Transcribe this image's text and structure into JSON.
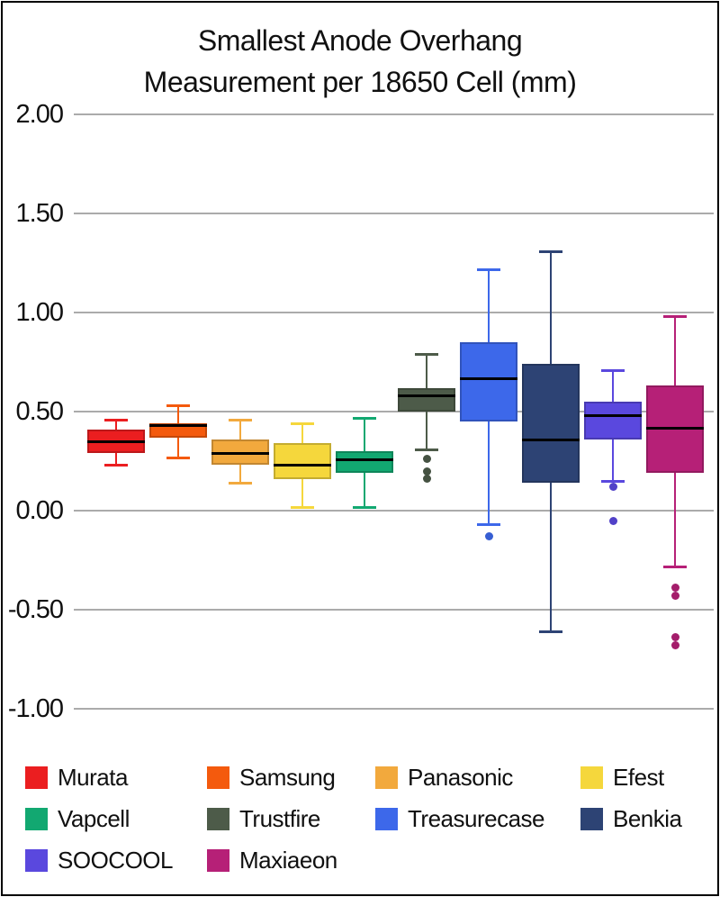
{
  "title": {
    "line1": "Smallest Anode Overhang",
    "line2": "Measurement per 18650 Cell (mm)"
  },
  "y_axis": {
    "tick_labels": [
      "2.00",
      "1.50",
      "1.00",
      "0.50",
      "0.00",
      "-0.50",
      "-1.00"
    ],
    "tick_values": [
      2.0,
      1.5,
      1.0,
      0.5,
      0.0,
      -0.5,
      -1.0
    ]
  },
  "chart_data": {
    "type": "box",
    "title": "Smallest Anode Overhang Measurement per 18650 Cell (mm)",
    "xlabel": "",
    "ylabel": "",
    "ylim": [
      -1.25,
      2.15
    ],
    "grid": true,
    "legend_position": "bottom",
    "median_color": "#000000",
    "series": [
      {
        "name": "Murata",
        "color": "#EB1E20",
        "whisker_low": 0.23,
        "q1": 0.29,
        "median": 0.35,
        "q3": 0.41,
        "whisker_high": 0.46,
        "outliers": []
      },
      {
        "name": "Samsung",
        "color": "#F45A0D",
        "whisker_low": 0.27,
        "q1": 0.37,
        "median": 0.43,
        "q3": 0.44,
        "whisker_high": 0.53,
        "outliers": []
      },
      {
        "name": "Panasonic",
        "color": "#F2A93D",
        "whisker_low": 0.14,
        "q1": 0.23,
        "median": 0.29,
        "q3": 0.36,
        "whisker_high": 0.46,
        "outliers": []
      },
      {
        "name": "Efest",
        "color": "#F5D73C",
        "whisker_low": 0.02,
        "q1": 0.16,
        "median": 0.23,
        "q3": 0.34,
        "whisker_high": 0.44,
        "outliers": []
      },
      {
        "name": "Vapcell",
        "color": "#12A871",
        "whisker_low": 0.02,
        "q1": 0.19,
        "median": 0.26,
        "q3": 0.3,
        "whisker_high": 0.47,
        "outliers": []
      },
      {
        "name": "Trustfire",
        "color": "#4D5B49",
        "whisker_low": 0.31,
        "q1": 0.5,
        "median": 0.58,
        "q3": 0.62,
        "whisker_high": 0.79,
        "outliers": [
          0.26,
          0.2,
          0.16
        ]
      },
      {
        "name": "Treasurecase",
        "color": "#3D68EA",
        "whisker_low": -0.07,
        "q1": 0.45,
        "median": 0.67,
        "q3": 0.85,
        "whisker_high": 1.22,
        "outliers": [
          -0.13
        ]
      },
      {
        "name": "Benkia",
        "color": "#2D4374",
        "whisker_low": -0.61,
        "q1": 0.14,
        "median": 0.36,
        "q3": 0.74,
        "whisker_high": 1.31,
        "outliers": []
      },
      {
        "name": "SOOCOOL",
        "color": "#5A48DE",
        "whisker_low": 0.15,
        "q1": 0.36,
        "median": 0.48,
        "q3": 0.55,
        "whisker_high": 0.71,
        "outliers": [
          0.12,
          -0.05
        ]
      },
      {
        "name": "Maxiaeon",
        "color": "#B62077",
        "whisker_low": -0.28,
        "q1": 0.19,
        "median": 0.42,
        "q3": 0.63,
        "whisker_high": 0.98,
        "outliers": [
          -0.39,
          -0.43,
          -0.64,
          -0.68
        ]
      }
    ]
  }
}
